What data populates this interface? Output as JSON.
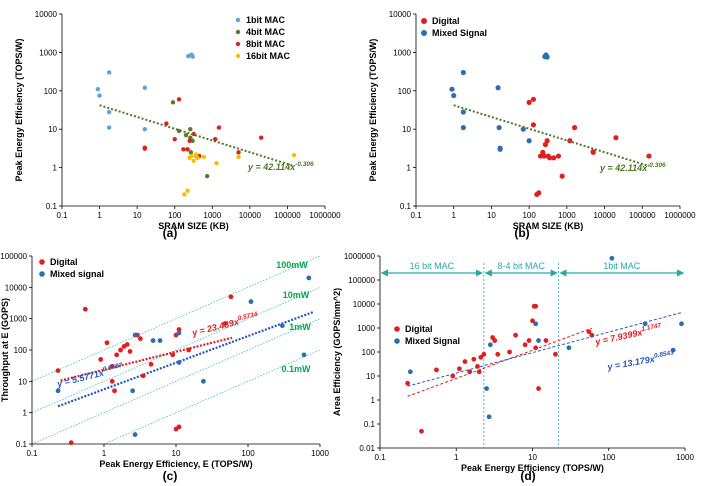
{
  "colors": {
    "light_blue": "#5ba3d9",
    "dark_green": "#5a7a2a",
    "red": "#e02020",
    "yellow": "#f5c000",
    "dark_blue": "#2c6fb0",
    "green_trend": "#4a7a20",
    "blue_trend": "#2a55c0",
    "iso_line": "#3cc0c0",
    "iso_text": "#00a84f",
    "teal": "#2aa7a7"
  },
  "chart_data": [
    {
      "id": "a",
      "type": "scatter",
      "fig_label": "(a)",
      "xlabel": "SRAM SIZE (KB)",
      "ylabel": "Peak Energy Efficiency (TOPS/W)",
      "xscale": "log",
      "yscale": "log",
      "xlim": [
        0.1,
        1000000
      ],
      "ylim": [
        0.1,
        10000
      ],
      "xticks": [
        "0.1",
        "1",
        "10",
        "100",
        "1000",
        "10000",
        "100000",
        "1000000"
      ],
      "yticks": [
        "0.1",
        "1",
        "10",
        "100",
        "1000",
        "10000"
      ],
      "legend_position": "top-right",
      "series": [
        {
          "name": "1bit MAC",
          "color": "#5ba3d9",
          "points": [
            [
              0.9,
              110
            ],
            [
              1,
              75
            ],
            [
              1.8,
              300
            ],
            [
              1.8,
              28
            ],
            [
              1.8,
              11
            ],
            [
              16,
              120
            ],
            [
              16,
              10
            ],
            [
              230,
              800
            ],
            [
              280,
              870
            ],
            [
              300,
              780
            ]
          ]
        },
        {
          "name": "4bit MAC",
          "color": "#5a7a2a",
          "points": [
            [
              90,
              50
            ],
            [
              130,
              9
            ],
            [
              200,
              7
            ],
            [
              260,
              10
            ],
            [
              260,
              6
            ],
            [
              270,
              2.5
            ],
            [
              730,
              0.6
            ],
            [
              300,
              5
            ]
          ]
        },
        {
          "name": "8bit MAC",
          "color": "#e02020",
          "points": [
            [
              16,
              3.3
            ],
            [
              16,
              3.1
            ],
            [
              60,
              14
            ],
            [
              100,
              5.5
            ],
            [
              130,
              60
            ],
            [
              170,
              3
            ],
            [
              220,
              3
            ],
            [
              250,
              5
            ],
            [
              320,
              7.5
            ],
            [
              380,
              2
            ],
            [
              450,
              2
            ],
            [
              1500,
              11
            ],
            [
              1200,
              5.5
            ],
            [
              20000,
              6
            ],
            [
              5000,
              2.5
            ]
          ]
        },
        {
          "name": "16bit MAC",
          "color": "#f5c000",
          "points": [
            [
              180,
              0.2
            ],
            [
              220,
              0.25
            ],
            [
              250,
              1.8
            ],
            [
              280,
              2
            ],
            [
              320,
              1.5
            ],
            [
              370,
              2.2
            ],
            [
              400,
              1.8
            ],
            [
              600,
              1.9
            ],
            [
              1300,
              1.3
            ],
            [
              5000,
              1.9
            ],
            [
              150000,
              2.1
            ]
          ]
        }
      ],
      "trend": {
        "coef": 42.114,
        "exp": -0.306,
        "x_range": [
          1,
          150000
        ],
        "label": "y = 42.114x",
        "sup": "-0.306",
        "color": "#4a7a20"
      }
    },
    {
      "id": "b",
      "type": "scatter",
      "fig_label": "(b)",
      "xlabel": "SRAM SIZE (KB)",
      "ylabel": "Peak Energy Efficiency (TOPS/W)",
      "xscale": "log",
      "yscale": "log",
      "xlim": [
        0.1,
        1000000
      ],
      "ylim": [
        0.1,
        10000
      ],
      "xticks": [
        "0.1",
        "1",
        "10",
        "100",
        "1000",
        "10000",
        "100000",
        "1000000"
      ],
      "yticks": [
        "0.1",
        "1",
        "10",
        "100",
        "1000",
        "10000"
      ],
      "legend_position": "top-left",
      "series": [
        {
          "name": "Digital",
          "color": "#e02020",
          "points": [
            [
              100,
              50
            ],
            [
              130,
              60
            ],
            [
              130,
              13
            ],
            [
              160,
              0.2
            ],
            [
              180,
              0.22
            ],
            [
              200,
              2
            ],
            [
              230,
              2.5
            ],
            [
              250,
              2
            ],
            [
              270,
              4
            ],
            [
              300,
              5
            ],
            [
              320,
              2
            ],
            [
              350,
              1.8
            ],
            [
              450,
              1.8
            ],
            [
              600,
              2
            ],
            [
              750,
              0.6
            ],
            [
              1200,
              5
            ],
            [
              1600,
              11
            ],
            [
              5000,
              2.5
            ],
            [
              5000,
              2.6
            ],
            [
              20000,
              6
            ],
            [
              150000,
              2
            ]
          ]
        },
        {
          "name": "Mixed Signal",
          "color": "#2c6fb0",
          "points": [
            [
              0.9,
              110
            ],
            [
              1,
              75
            ],
            [
              1.8,
              300
            ],
            [
              1.8,
              28
            ],
            [
              1.8,
              11
            ],
            [
              15,
              120
            ],
            [
              16,
              11
            ],
            [
              17,
              3.2
            ],
            [
              17,
              3
            ],
            [
              260,
              780
            ],
            [
              280,
              860
            ],
            [
              300,
              760
            ],
            [
              70,
              10
            ],
            [
              100,
              5
            ]
          ]
        }
      ],
      "trend": {
        "coef": 42.114,
        "exp": -0.306,
        "x_range": [
          1,
          150000
        ],
        "label": "y = 42.114x",
        "sup": "-0.306",
        "color": "#4a7a20"
      }
    },
    {
      "id": "c",
      "type": "scatter",
      "fig_label": "(c)",
      "xlabel": "Peak Energy Efficiency, E (TOPS/W)",
      "ylabel": "Throughput at E (GOPS)",
      "xscale": "log",
      "yscale": "log",
      "xlim": [
        0.1,
        1000
      ],
      "ylim": [
        0.1,
        100000
      ],
      "xticks": [
        "0.1",
        "1",
        "10",
        "100",
        "1000"
      ],
      "yticks": [
        "0.1",
        "1",
        "10",
        "100",
        "1000",
        "10000",
        "100000"
      ],
      "legend_position": "top-left",
      "iso_lines": [
        {
          "label": "100mW",
          "power_mw": 100
        },
        {
          "label": "10mW",
          "power_mw": 10
        },
        {
          "label": "1mW",
          "power_mw": 1
        },
        {
          "label": "0.1mW",
          "power_mw": 0.1
        }
      ],
      "series": [
        {
          "name": "Digital",
          "color": "#e02020",
          "points": [
            [
              0.23,
              22
            ],
            [
              0.35,
              0.11
            ],
            [
              0.55,
              2000
            ],
            [
              0.9,
              50
            ],
            [
              1.1,
              170
            ],
            [
              1.3,
              30
            ],
            [
              1.5,
              70
            ],
            [
              1.7,
              100
            ],
            [
              1.9,
              130
            ],
            [
              2.1,
              150
            ],
            [
              2.3,
              90
            ],
            [
              1.3,
              10
            ],
            [
              1.4,
              5
            ],
            [
              2.9,
              300
            ],
            [
              3.2,
              230
            ],
            [
              3.5,
              15
            ],
            [
              4.5,
              35
            ],
            [
              10,
              300
            ],
            [
              11,
              450
            ],
            [
              11,
              0.35
            ],
            [
              10,
              0.3
            ],
            [
              9,
              70
            ],
            [
              15,
              100
            ],
            [
              48,
              700
            ],
            [
              58,
              5000
            ]
          ]
        },
        {
          "name": "Mixed signal",
          "color": "#2c6fb0",
          "points": [
            [
              0.23,
              5
            ],
            [
              2.5,
              5
            ],
            [
              2.7,
              300
            ],
            [
              2.7,
              0.2
            ],
            [
              4.8,
              200
            ],
            [
              6,
              200
            ],
            [
              11,
              350
            ],
            [
              11,
              40
            ],
            [
              24,
              10
            ],
            [
              110,
              3500
            ],
            [
              300,
              600
            ],
            [
              600,
              70
            ],
            [
              700,
              20000
            ]
          ]
        }
      ],
      "trends": [
        {
          "coef": 23.489,
          "exp": 0.5734,
          "x_range": [
            0.25,
            60
          ],
          "label": "y = 23.489x",
          "sup": "0.5734",
          "color": "#e02020"
        },
        {
          "coef": 5.5771,
          "exp": 0.8487,
          "x_range": [
            0.23,
            800
          ],
          "label": "y = 5.5771x",
          "sup": "0.8487",
          "color": "#2a55c0"
        }
      ]
    },
    {
      "id": "d",
      "type": "scatter",
      "fig_label": "(d)",
      "xlabel": "Peak Energy Efficiency (TOPS/W)",
      "ylabel": "Area Efficiency (GOPS/mm^2)",
      "xscale": "log",
      "yscale": "log",
      "xlim": [
        0.1,
        1000
      ],
      "ylim": [
        0.01,
        1000000
      ],
      "xticks": [
        "0.1",
        "1",
        "10",
        "100",
        "1000"
      ],
      "yticks": [
        "0.01",
        "0.1",
        "1",
        "10",
        "100",
        "1000",
        "10000",
        "100000",
        "1000000"
      ],
      "legend_position": "center-left",
      "regions": [
        {
          "label": "16 bit MAC",
          "from": 0.1,
          "to": 2.3
        },
        {
          "label": "8-4 bit MAC",
          "from": 2.3,
          "to": 22
        },
        {
          "label": "1bit MAC",
          "from": 22,
          "to": 1000
        }
      ],
      "series": [
        {
          "name": "Digital",
          "color": "#e02020",
          "points": [
            [
              0.23,
              5
            ],
            [
              0.35,
              0.05
            ],
            [
              0.55,
              18
            ],
            [
              0.9,
              10
            ],
            [
              1.1,
              20
            ],
            [
              1.3,
              40
            ],
            [
              1.5,
              15
            ],
            [
              1.7,
              50
            ],
            [
              1.9,
              25
            ],
            [
              2,
              15
            ],
            [
              2.1,
              60
            ],
            [
              2.3,
              80
            ],
            [
              3,
              400
            ],
            [
              3.2,
              300
            ],
            [
              3.5,
              80
            ],
            [
              5,
              100
            ],
            [
              6,
              500
            ],
            [
              9,
              300
            ],
            [
              10,
              2000
            ],
            [
              10.5,
              8000
            ],
            [
              11,
              8000
            ],
            [
              11,
              150
            ],
            [
              12,
              3
            ],
            [
              15,
              300
            ],
            [
              55,
              700
            ],
            [
              60,
              500
            ],
            [
              20,
              80
            ],
            [
              8,
              200
            ]
          ]
        },
        {
          "name": "Mixed Signal",
          "color": "#2c6fb0",
          "points": [
            [
              0.25,
              15
            ],
            [
              2.5,
              3
            ],
            [
              2.7,
              0.2
            ],
            [
              2.8,
              200
            ],
            [
              11,
              1500
            ],
            [
              12,
              300
            ],
            [
              30,
              150
            ],
            [
              110,
              800000
            ],
            [
              300,
              1500
            ],
            [
              700,
              120
            ],
            [
              900,
              1500
            ]
          ]
        }
      ],
      "trends": [
        {
          "coef": 7.9399,
          "exp": 1.1747,
          "x_range": [
            0.23,
            60
          ],
          "label": "y = 7.9399x",
          "sup": "1.1747",
          "color": "#e02020"
        },
        {
          "coef": 13.179,
          "exp": 0.8543,
          "x_range": [
            0.23,
            900
          ],
          "label": "y = 13.179x",
          "sup": "0.8543",
          "color": "#2a55c0"
        }
      ]
    }
  ]
}
